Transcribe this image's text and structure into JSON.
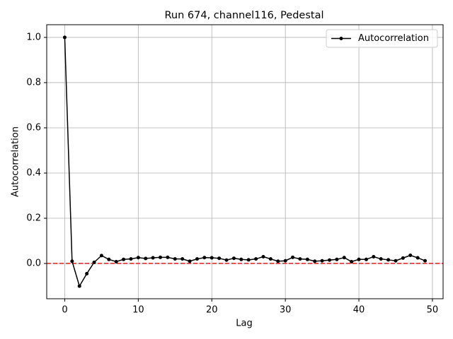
{
  "chart_data": {
    "type": "line",
    "title": "Run 674, channel116, Pedestal",
    "xlabel": "Lag",
    "ylabel": "Autocorrelation",
    "x": [
      0,
      1,
      2,
      3,
      4,
      5,
      6,
      7,
      8,
      9,
      10,
      11,
      12,
      13,
      14,
      15,
      16,
      17,
      18,
      19,
      20,
      21,
      22,
      23,
      24,
      25,
      26,
      27,
      28,
      29,
      30,
      31,
      32,
      33,
      34,
      35,
      36,
      37,
      38,
      39,
      40,
      41,
      42,
      43,
      44,
      45,
      46,
      47,
      48,
      49
    ],
    "series": [
      {
        "name": "Autocorrelation",
        "color": "#000000",
        "values": [
          1.0,
          0.01,
          -0.1,
          -0.045,
          0.005,
          0.035,
          0.018,
          0.008,
          0.018,
          0.02,
          0.026,
          0.022,
          0.025,
          0.027,
          0.027,
          0.02,
          0.02,
          0.01,
          0.02,
          0.026,
          0.025,
          0.023,
          0.015,
          0.023,
          0.018,
          0.016,
          0.02,
          0.03,
          0.02,
          0.01,
          0.012,
          0.027,
          0.02,
          0.018,
          0.01,
          0.012,
          0.015,
          0.018,
          0.026,
          0.008,
          0.018,
          0.018,
          0.03,
          0.02,
          0.016,
          0.012,
          0.024,
          0.036,
          0.025,
          0.012
        ]
      }
    ],
    "reference_line": {
      "value": 0,
      "color": "#e41a1c"
    },
    "xlim": [
      -2.45,
      51.45
    ],
    "ylim": [
      -0.156,
      1.056
    ],
    "xticks": [
      0,
      10,
      20,
      30,
      40,
      50
    ],
    "yticks": [
      {
        "value": 0,
        "label": "0.0"
      },
      {
        "value": 0.2,
        "label": "0.2"
      },
      {
        "value": 0.4,
        "label": "0.4"
      },
      {
        "value": 0.6,
        "label": "0.6"
      },
      {
        "value": 0.8,
        "label": "0.8"
      },
      {
        "value": 1,
        "label": "1.0"
      }
    ],
    "grid": true,
    "legend": "upper right"
  }
}
